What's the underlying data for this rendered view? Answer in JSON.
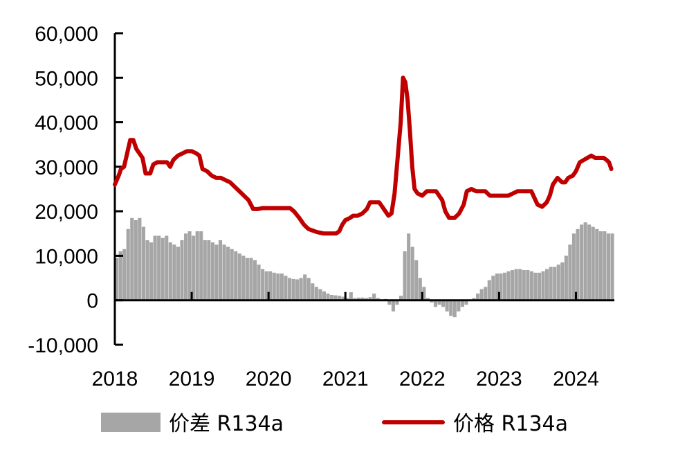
{
  "chart_data": {
    "type": "bar+line",
    "title": "",
    "xlabel": "",
    "ylabel": "",
    "x_ticks": [
      "2018",
      "2019",
      "2020",
      "2021",
      "2022",
      "2023",
      "2024"
    ],
    "y_ticks": [
      60000,
      50000,
      40000,
      30000,
      20000,
      10000,
      0,
      -10000
    ],
    "y_tick_labels": [
      "60,000",
      "50,000",
      "40,000",
      "30,000",
      "20,000",
      "10,000",
      "0",
      "-10,000"
    ],
    "ylim": [
      -10000,
      60000
    ],
    "xlim": [
      2018.0,
      2024.5
    ],
    "grid": false,
    "legend_position": "bottom",
    "series": [
      {
        "name": "价差 R134a",
        "kind": "bar",
        "color": "#a6a6a6",
        "points": [
          [
            2018.0,
            9500
          ],
          [
            2018.05,
            11000
          ],
          [
            2018.1,
            11500
          ],
          [
            2018.15,
            16000
          ],
          [
            2018.2,
            18500
          ],
          [
            2018.25,
            18000
          ],
          [
            2018.3,
            18500
          ],
          [
            2018.35,
            16500
          ],
          [
            2018.4,
            13500
          ],
          [
            2018.45,
            13000
          ],
          [
            2018.5,
            14500
          ],
          [
            2018.55,
            14500
          ],
          [
            2018.6,
            14000
          ],
          [
            2018.65,
            14500
          ],
          [
            2018.7,
            13000
          ],
          [
            2018.75,
            12500
          ],
          [
            2018.8,
            12000
          ],
          [
            2018.85,
            13500
          ],
          [
            2018.9,
            15000
          ],
          [
            2018.95,
            15500
          ],
          [
            2019.0,
            14500
          ],
          [
            2019.05,
            15500
          ],
          [
            2019.1,
            15500
          ],
          [
            2019.15,
            13500
          ],
          [
            2019.2,
            13500
          ],
          [
            2019.25,
            13000
          ],
          [
            2019.3,
            12500
          ],
          [
            2019.35,
            13500
          ],
          [
            2019.4,
            12500
          ],
          [
            2019.45,
            12000
          ],
          [
            2019.5,
            11500
          ],
          [
            2019.55,
            11000
          ],
          [
            2019.6,
            10500
          ],
          [
            2019.65,
            10000
          ],
          [
            2019.7,
            9500
          ],
          [
            2019.75,
            9500
          ],
          [
            2019.8,
            9000
          ],
          [
            2019.85,
            8000
          ],
          [
            2019.9,
            7000
          ],
          [
            2019.95,
            6500
          ],
          [
            2020.0,
            6500
          ],
          [
            2020.05,
            6200
          ],
          [
            2020.1,
            6000
          ],
          [
            2020.15,
            6000
          ],
          [
            2020.2,
            5500
          ],
          [
            2020.25,
            5000
          ],
          [
            2020.3,
            4800
          ],
          [
            2020.35,
            4700
          ],
          [
            2020.4,
            5000
          ],
          [
            2020.45,
            5800
          ],
          [
            2020.5,
            5000
          ],
          [
            2020.55,
            3800
          ],
          [
            2020.6,
            3000
          ],
          [
            2020.65,
            2500
          ],
          [
            2020.7,
            2000
          ],
          [
            2020.75,
            1500
          ],
          [
            2020.8,
            1200
          ],
          [
            2020.85,
            1100
          ],
          [
            2020.9,
            1000
          ],
          [
            2020.95,
            800
          ],
          [
            2021.0,
            500
          ],
          [
            2021.05,
            1800
          ],
          [
            2021.1,
            500
          ],
          [
            2021.15,
            600
          ],
          [
            2021.2,
            600
          ],
          [
            2021.25,
            500
          ],
          [
            2021.3,
            700
          ],
          [
            2021.35,
            1500
          ],
          [
            2021.4,
            500
          ],
          [
            2021.45,
            200
          ],
          [
            2021.5,
            300
          ],
          [
            2021.55,
            -1000
          ],
          [
            2021.6,
            -2500
          ],
          [
            2021.65,
            -1000
          ],
          [
            2021.7,
            1000
          ],
          [
            2021.75,
            11000
          ],
          [
            2021.8,
            15000
          ],
          [
            2021.85,
            12000
          ],
          [
            2021.9,
            9000
          ],
          [
            2021.95,
            5000
          ],
          [
            2022.0,
            3000
          ],
          [
            2022.05,
            500
          ],
          [
            2022.1,
            -500
          ],
          [
            2022.15,
            -1500
          ],
          [
            2022.2,
            -1000
          ],
          [
            2022.25,
            -1500
          ],
          [
            2022.3,
            -2500
          ],
          [
            2022.35,
            -3500
          ],
          [
            2022.4,
            -3800
          ],
          [
            2022.45,
            -2500
          ],
          [
            2022.5,
            -1500
          ],
          [
            2022.55,
            -1000
          ],
          [
            2022.6,
            -200
          ],
          [
            2022.65,
            500
          ],
          [
            2022.7,
            1500
          ],
          [
            2022.75,
            2500
          ],
          [
            2022.8,
            3000
          ],
          [
            2022.85,
            4500
          ],
          [
            2022.9,
            5500
          ],
          [
            2022.95,
            6000
          ],
          [
            2023.0,
            6000
          ],
          [
            2023.05,
            6200
          ],
          [
            2023.1,
            6500
          ],
          [
            2023.15,
            6800
          ],
          [
            2023.2,
            7000
          ],
          [
            2023.25,
            7000
          ],
          [
            2023.3,
            6800
          ],
          [
            2023.35,
            6800
          ],
          [
            2023.4,
            6500
          ],
          [
            2023.45,
            6200
          ],
          [
            2023.5,
            6200
          ],
          [
            2023.55,
            6500
          ],
          [
            2023.6,
            7000
          ],
          [
            2023.65,
            7500
          ],
          [
            2023.7,
            7500
          ],
          [
            2023.75,
            8000
          ],
          [
            2023.8,
            8500
          ],
          [
            2023.85,
            10000
          ],
          [
            2023.9,
            12500
          ],
          [
            2023.95,
            15000
          ],
          [
            2024.0,
            16000
          ],
          [
            2024.05,
            17000
          ],
          [
            2024.1,
            17500
          ],
          [
            2024.15,
            17000
          ],
          [
            2024.2,
            16500
          ],
          [
            2024.25,
            16000
          ],
          [
            2024.3,
            15500
          ],
          [
            2024.35,
            15500
          ],
          [
            2024.4,
            15000
          ],
          [
            2024.45,
            15000
          ]
        ]
      },
      {
        "name": "价格 R134a",
        "kind": "line",
        "color": "#c00000",
        "points": [
          [
            2018.0,
            26000
          ],
          [
            2018.05,
            28000
          ],
          [
            2018.08,
            29500
          ],
          [
            2018.12,
            30000
          ],
          [
            2018.16,
            33000
          ],
          [
            2018.2,
            36000
          ],
          [
            2018.24,
            36000
          ],
          [
            2018.28,
            34000
          ],
          [
            2018.32,
            33000
          ],
          [
            2018.36,
            32000
          ],
          [
            2018.4,
            28500
          ],
          [
            2018.46,
            28500
          ],
          [
            2018.5,
            30500
          ],
          [
            2018.55,
            31000
          ],
          [
            2018.62,
            31000
          ],
          [
            2018.68,
            31000
          ],
          [
            2018.72,
            30000
          ],
          [
            2018.76,
            31500
          ],
          [
            2018.82,
            32500
          ],
          [
            2018.88,
            33000
          ],
          [
            2018.94,
            33500
          ],
          [
            2019.0,
            33500
          ],
          [
            2019.06,
            33000
          ],
          [
            2019.1,
            32500
          ],
          [
            2019.14,
            29500
          ],
          [
            2019.2,
            29000
          ],
          [
            2019.26,
            28000
          ],
          [
            2019.32,
            27500
          ],
          [
            2019.38,
            27500
          ],
          [
            2019.44,
            27000
          ],
          [
            2019.5,
            26500
          ],
          [
            2019.56,
            25500
          ],
          [
            2019.62,
            24500
          ],
          [
            2019.68,
            23500
          ],
          [
            2019.74,
            22500
          ],
          [
            2019.8,
            20500
          ],
          [
            2019.86,
            20500
          ],
          [
            2019.92,
            20700
          ],
          [
            2020.0,
            20700
          ],
          [
            2020.08,
            20700
          ],
          [
            2020.16,
            20700
          ],
          [
            2020.22,
            20700
          ],
          [
            2020.28,
            20700
          ],
          [
            2020.33,
            20000
          ],
          [
            2020.4,
            18500
          ],
          [
            2020.46,
            17000
          ],
          [
            2020.52,
            16000
          ],
          [
            2020.6,
            15500
          ],
          [
            2020.66,
            15200
          ],
          [
            2020.72,
            15000
          ],
          [
            2020.8,
            15000
          ],
          [
            2020.88,
            15000
          ],
          [
            2020.92,
            15500
          ],
          [
            2020.96,
            17000
          ],
          [
            2021.0,
            18000
          ],
          [
            2021.06,
            18500
          ],
          [
            2021.1,
            19000
          ],
          [
            2021.16,
            19000
          ],
          [
            2021.22,
            19500
          ],
          [
            2021.28,
            20500
          ],
          [
            2021.32,
            22000
          ],
          [
            2021.38,
            22000
          ],
          [
            2021.44,
            22000
          ],
          [
            2021.48,
            21000
          ],
          [
            2021.52,
            20000
          ],
          [
            2021.56,
            19000
          ],
          [
            2021.6,
            19500
          ],
          [
            2021.64,
            24000
          ],
          [
            2021.68,
            32000
          ],
          [
            2021.72,
            40000
          ],
          [
            2021.75,
            50000
          ],
          [
            2021.78,
            49000
          ],
          [
            2021.81,
            45000
          ],
          [
            2021.84,
            38000
          ],
          [
            2021.87,
            30000
          ],
          [
            2021.9,
            25000
          ],
          [
            2021.94,
            24000
          ],
          [
            2022.0,
            23500
          ],
          [
            2022.06,
            24500
          ],
          [
            2022.12,
            24500
          ],
          [
            2022.18,
            24500
          ],
          [
            2022.22,
            23500
          ],
          [
            2022.26,
            22500
          ],
          [
            2022.3,
            20000
          ],
          [
            2022.35,
            18500
          ],
          [
            2022.42,
            18500
          ],
          [
            2022.48,
            19500
          ],
          [
            2022.54,
            21500
          ],
          [
            2022.58,
            24500
          ],
          [
            2022.64,
            25000
          ],
          [
            2022.7,
            24500
          ],
          [
            2022.76,
            24500
          ],
          [
            2022.82,
            24500
          ],
          [
            2022.88,
            23500
          ],
          [
            2022.94,
            23500
          ],
          [
            2023.0,
            23500
          ],
          [
            2023.06,
            23500
          ],
          [
            2023.12,
            23500
          ],
          [
            2023.18,
            24000
          ],
          [
            2023.24,
            24500
          ],
          [
            2023.3,
            24500
          ],
          [
            2023.36,
            24500
          ],
          [
            2023.42,
            24500
          ],
          [
            2023.46,
            23000
          ],
          [
            2023.5,
            21500
          ],
          [
            2023.56,
            21000
          ],
          [
            2023.62,
            22000
          ],
          [
            2023.66,
            23500
          ],
          [
            2023.7,
            26000
          ],
          [
            2023.76,
            27500
          ],
          [
            2023.82,
            26500
          ],
          [
            2023.86,
            26500
          ],
          [
            2023.9,
            27500
          ],
          [
            2023.96,
            28000
          ],
          [
            2024.0,
            29000
          ],
          [
            2024.05,
            31000
          ],
          [
            2024.1,
            31500
          ],
          [
            2024.15,
            32000
          ],
          [
            2024.2,
            32500
          ],
          [
            2024.25,
            32000
          ],
          [
            2024.3,
            32000
          ],
          [
            2024.36,
            32000
          ],
          [
            2024.4,
            31500
          ],
          [
            2024.43,
            31000
          ],
          [
            2024.46,
            29500
          ]
        ]
      }
    ],
    "legend": [
      {
        "label": "价差 R134a",
        "symbol": "bar",
        "color": "#a6a6a6"
      },
      {
        "label": "价格 R134a",
        "symbol": "line",
        "color": "#c00000"
      }
    ]
  }
}
